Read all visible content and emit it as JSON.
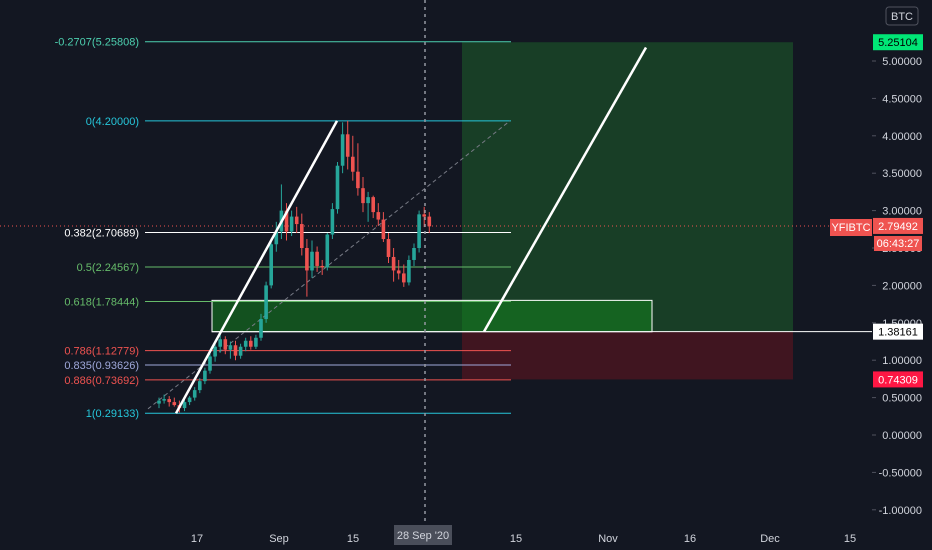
{
  "symbol": "YFIBTC",
  "currency": "BTC",
  "countdown": "06:43:27",
  "crosshair_date": "28 Sep '20",
  "colors": {
    "background": "#131722",
    "up": "#26a69a",
    "down": "#ef5350",
    "profit_zone": "rgba(30,110,45,0.45)",
    "loss_zone": "rgba(110,20,30,0.5)",
    "support_box": "rgba(20,130,30,0.55)"
  },
  "chart_data": {
    "type": "candlestick",
    "x_ticks": [
      "17",
      "Sep",
      "15",
      "15",
      "Nov",
      "16",
      "Dec",
      "15"
    ],
    "y_ticks": [
      "5.00000",
      "4.50000",
      "4.00000",
      "3.50000",
      "3.00000",
      "2.50000",
      "2.00000",
      "1.50000",
      "1.00000",
      "0.50000",
      "0.00000",
      "-0.50000",
      "-1.00000"
    ],
    "ylim": [
      -1.25,
      5.7
    ],
    "fib_levels": [
      {
        "label": "-0.2707(5.25808)",
        "value": 5.25808,
        "color": "#4dd0b0"
      },
      {
        "label": "0(4.20000)",
        "value": 4.2,
        "color": "#26c6da"
      },
      {
        "label": "0.382(2.70689)",
        "value": 2.70689,
        "color": "#ffffff"
      },
      {
        "label": "0.5(2.24567)",
        "value": 2.24567,
        "color": "#66bb6a"
      },
      {
        "label": "0.618(1.78444)",
        "value": 1.78444,
        "color": "#66bb6a"
      },
      {
        "label": "0.786(1.12779)",
        "value": 1.12779,
        "color": "#ef5350"
      },
      {
        "label": "0.835(0.93626)",
        "value": 0.93626,
        "color": "#9fa8da"
      },
      {
        "label": "0.886(0.73692)",
        "value": 0.73692,
        "color": "#ef5350"
      },
      {
        "label": "1(0.29133)",
        "value": 0.29133,
        "color": "#26c6da"
      }
    ],
    "price_tags": [
      {
        "label": "5.25104",
        "value": 5.25104,
        "bg": "#00e676",
        "fg": "#000000"
      },
      {
        "label": "2.79492",
        "value": 2.79492,
        "bg": "#ef5350",
        "fg": "#ffffff"
      },
      {
        "label": "1.38161",
        "value": 1.38161,
        "bg": "#ffffff",
        "fg": "#000000"
      },
      {
        "label": "0.74309",
        "value": 0.74309,
        "bg": "#ff1744",
        "fg": "#ffffff"
      }
    ],
    "candles": [
      [
        0.42,
        0.5,
        0.36,
        0.46
      ],
      [
        0.46,
        0.54,
        0.42,
        0.48
      ],
      [
        0.48,
        0.52,
        0.38,
        0.44
      ],
      [
        0.44,
        0.5,
        0.38,
        0.4
      ],
      [
        0.4,
        0.46,
        0.3,
        0.36
      ],
      [
        0.36,
        0.48,
        0.32,
        0.44
      ],
      [
        0.44,
        0.52,
        0.4,
        0.5
      ],
      [
        0.5,
        0.64,
        0.46,
        0.6
      ],
      [
        0.6,
        0.76,
        0.56,
        0.72
      ],
      [
        0.72,
        0.9,
        0.68,
        0.86
      ],
      [
        0.86,
        1.1,
        0.82,
        1.05
      ],
      [
        1.05,
        1.22,
        0.98,
        1.18
      ],
      [
        1.18,
        1.34,
        1.1,
        1.28
      ],
      [
        1.28,
        1.32,
        1.08,
        1.14
      ],
      [
        1.14,
        1.25,
        1.02,
        1.2
      ],
      [
        1.2,
        1.26,
        1.0,
        1.06
      ],
      [
        1.06,
        1.22,
        1.02,
        1.18
      ],
      [
        1.18,
        1.3,
        1.12,
        1.26
      ],
      [
        1.26,
        1.32,
        1.14,
        1.18
      ],
      [
        1.18,
        1.34,
        1.15,
        1.3
      ],
      [
        1.3,
        1.62,
        1.26,
        1.55
      ],
      [
        1.55,
        2.05,
        1.5,
        2.0
      ],
      [
        2.0,
        2.62,
        1.96,
        2.55
      ],
      [
        2.55,
        2.85,
        2.45,
        2.72
      ],
      [
        2.72,
        3.35,
        2.62,
        3.0
      ],
      [
        3.0,
        3.1,
        2.6,
        2.72
      ],
      [
        2.72,
        3.0,
        2.66,
        2.92
      ],
      [
        2.92,
        3.05,
        2.7,
        2.82
      ],
      [
        2.82,
        2.96,
        2.4,
        2.5
      ],
      [
        2.5,
        2.62,
        1.85,
        2.2
      ],
      [
        2.2,
        2.6,
        2.1,
        2.45
      ],
      [
        2.45,
        2.52,
        2.18,
        2.26
      ],
      [
        2.26,
        2.34,
        2.14,
        2.24
      ],
      [
        2.24,
        2.7,
        2.2,
        2.68
      ],
      [
        2.68,
        3.1,
        2.62,
        3.02
      ],
      [
        3.02,
        3.65,
        2.96,
        3.6
      ],
      [
        3.6,
        4.18,
        3.5,
        4.02
      ],
      [
        4.02,
        4.2,
        3.55,
        3.72
      ],
      [
        3.72,
        4.0,
        3.4,
        3.52
      ],
      [
        3.52,
        3.9,
        3.2,
        3.3
      ],
      [
        3.3,
        3.45,
        2.98,
        3.1
      ],
      [
        3.1,
        3.25,
        2.85,
        3.18
      ],
      [
        3.18,
        3.2,
        2.9,
        2.98
      ],
      [
        2.98,
        3.1,
        2.8,
        2.88
      ],
      [
        2.88,
        2.98,
        2.58,
        2.62
      ],
      [
        2.62,
        2.7,
        2.3,
        2.38
      ],
      [
        2.38,
        2.5,
        2.05,
        2.2
      ],
      [
        2.2,
        2.34,
        2.08,
        2.16
      ],
      [
        2.16,
        2.28,
        1.98,
        2.04
      ],
      [
        2.04,
        2.4,
        2.0,
        2.34
      ],
      [
        2.34,
        2.56,
        2.26,
        2.5
      ],
      [
        2.5,
        3.0,
        2.44,
        2.95
      ],
      [
        2.95,
        3.05,
        2.78,
        2.92
      ],
      [
        2.92,
        2.98,
        2.7,
        2.79
      ]
    ]
  }
}
